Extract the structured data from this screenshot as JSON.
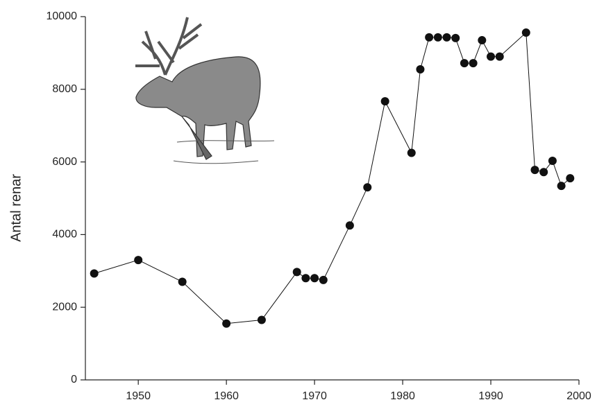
{
  "chart_data": {
    "type": "line",
    "y_label": "Antal renar",
    "x": [
      1945,
      1950,
      1955,
      1960,
      1964,
      1968,
      1969,
      1970,
      1971,
      1974,
      1976,
      1978,
      1981,
      1982,
      1983,
      1984,
      1985,
      1986,
      1987,
      1988,
      1989,
      1990,
      1991,
      1994,
      1995,
      1996,
      1997,
      1998,
      1999
    ],
    "series": [
      {
        "color": "#111111",
        "values": [
          2930,
          3300,
          2700,
          1550,
          1650,
          2970,
          2800,
          2800,
          2750,
          4250,
          5300,
          7670,
          6250,
          8550,
          9430,
          9430,
          9430,
          9410,
          8720,
          8720,
          9350,
          8900,
          8900,
          9560,
          5780,
          5720,
          6030,
          5340,
          5550
        ]
      }
    ],
    "xlim": [
      1944,
      2000
    ],
    "xticks": [
      1950,
      1960,
      1970,
      1980,
      1990,
      2000
    ],
    "ylim": [
      0,
      10000
    ],
    "yticks": [
      0,
      2000,
      4000,
      6000,
      8000,
      10000
    ]
  }
}
